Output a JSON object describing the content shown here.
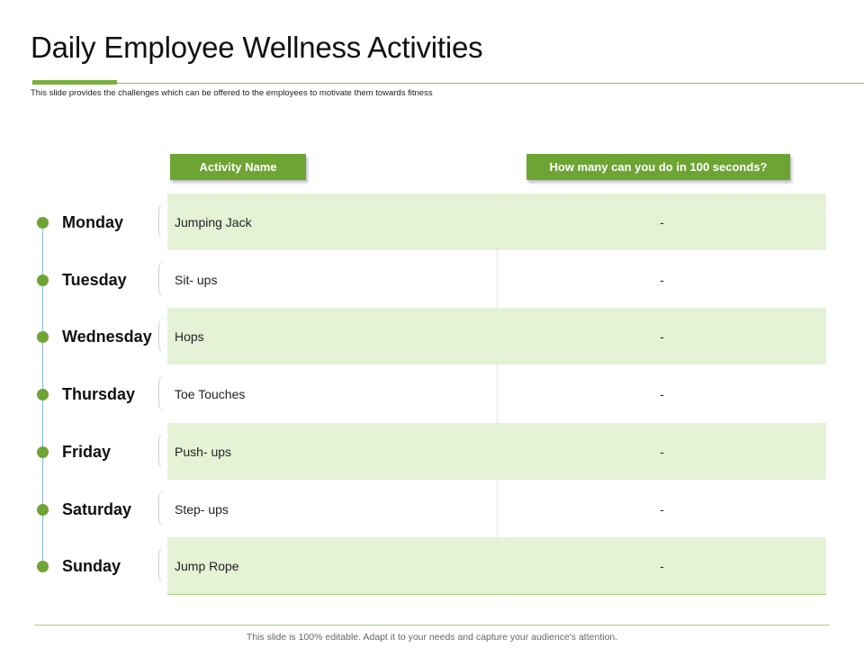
{
  "slide": {
    "title": "Daily Employee Wellness Activities",
    "subtitle": "This slide provides the challenges which can be offered to the employees to motivate them towards fitness",
    "footer": "This slide is 100% editable. Adapt it to your needs and capture your audience's attention."
  },
  "table": {
    "headers": {
      "activity": "Activity Name",
      "count": "How many can you do in 100 seconds?"
    },
    "rows": [
      {
        "day": "Monday",
        "activity": "Jumping Jack",
        "count": "-"
      },
      {
        "day": "Tuesday",
        "activity": "Sit- ups",
        "count": "-"
      },
      {
        "day": "Wednesday",
        "activity": "Hops",
        "count": "-"
      },
      {
        "day": "Thursday",
        "activity": "Toe Touches",
        "count": "-"
      },
      {
        "day": "Friday",
        "activity": "Push- ups",
        "count": "-"
      },
      {
        "day": "Saturday",
        "activity": "Step- ups",
        "count": "-"
      },
      {
        "day": "Sunday",
        "activity": "Jump Rope",
        "count": "-"
      }
    ]
  },
  "colors": {
    "accent": "#6ea434",
    "row_fill": "#e6f2d6",
    "timeline": "#7fb6d8"
  }
}
